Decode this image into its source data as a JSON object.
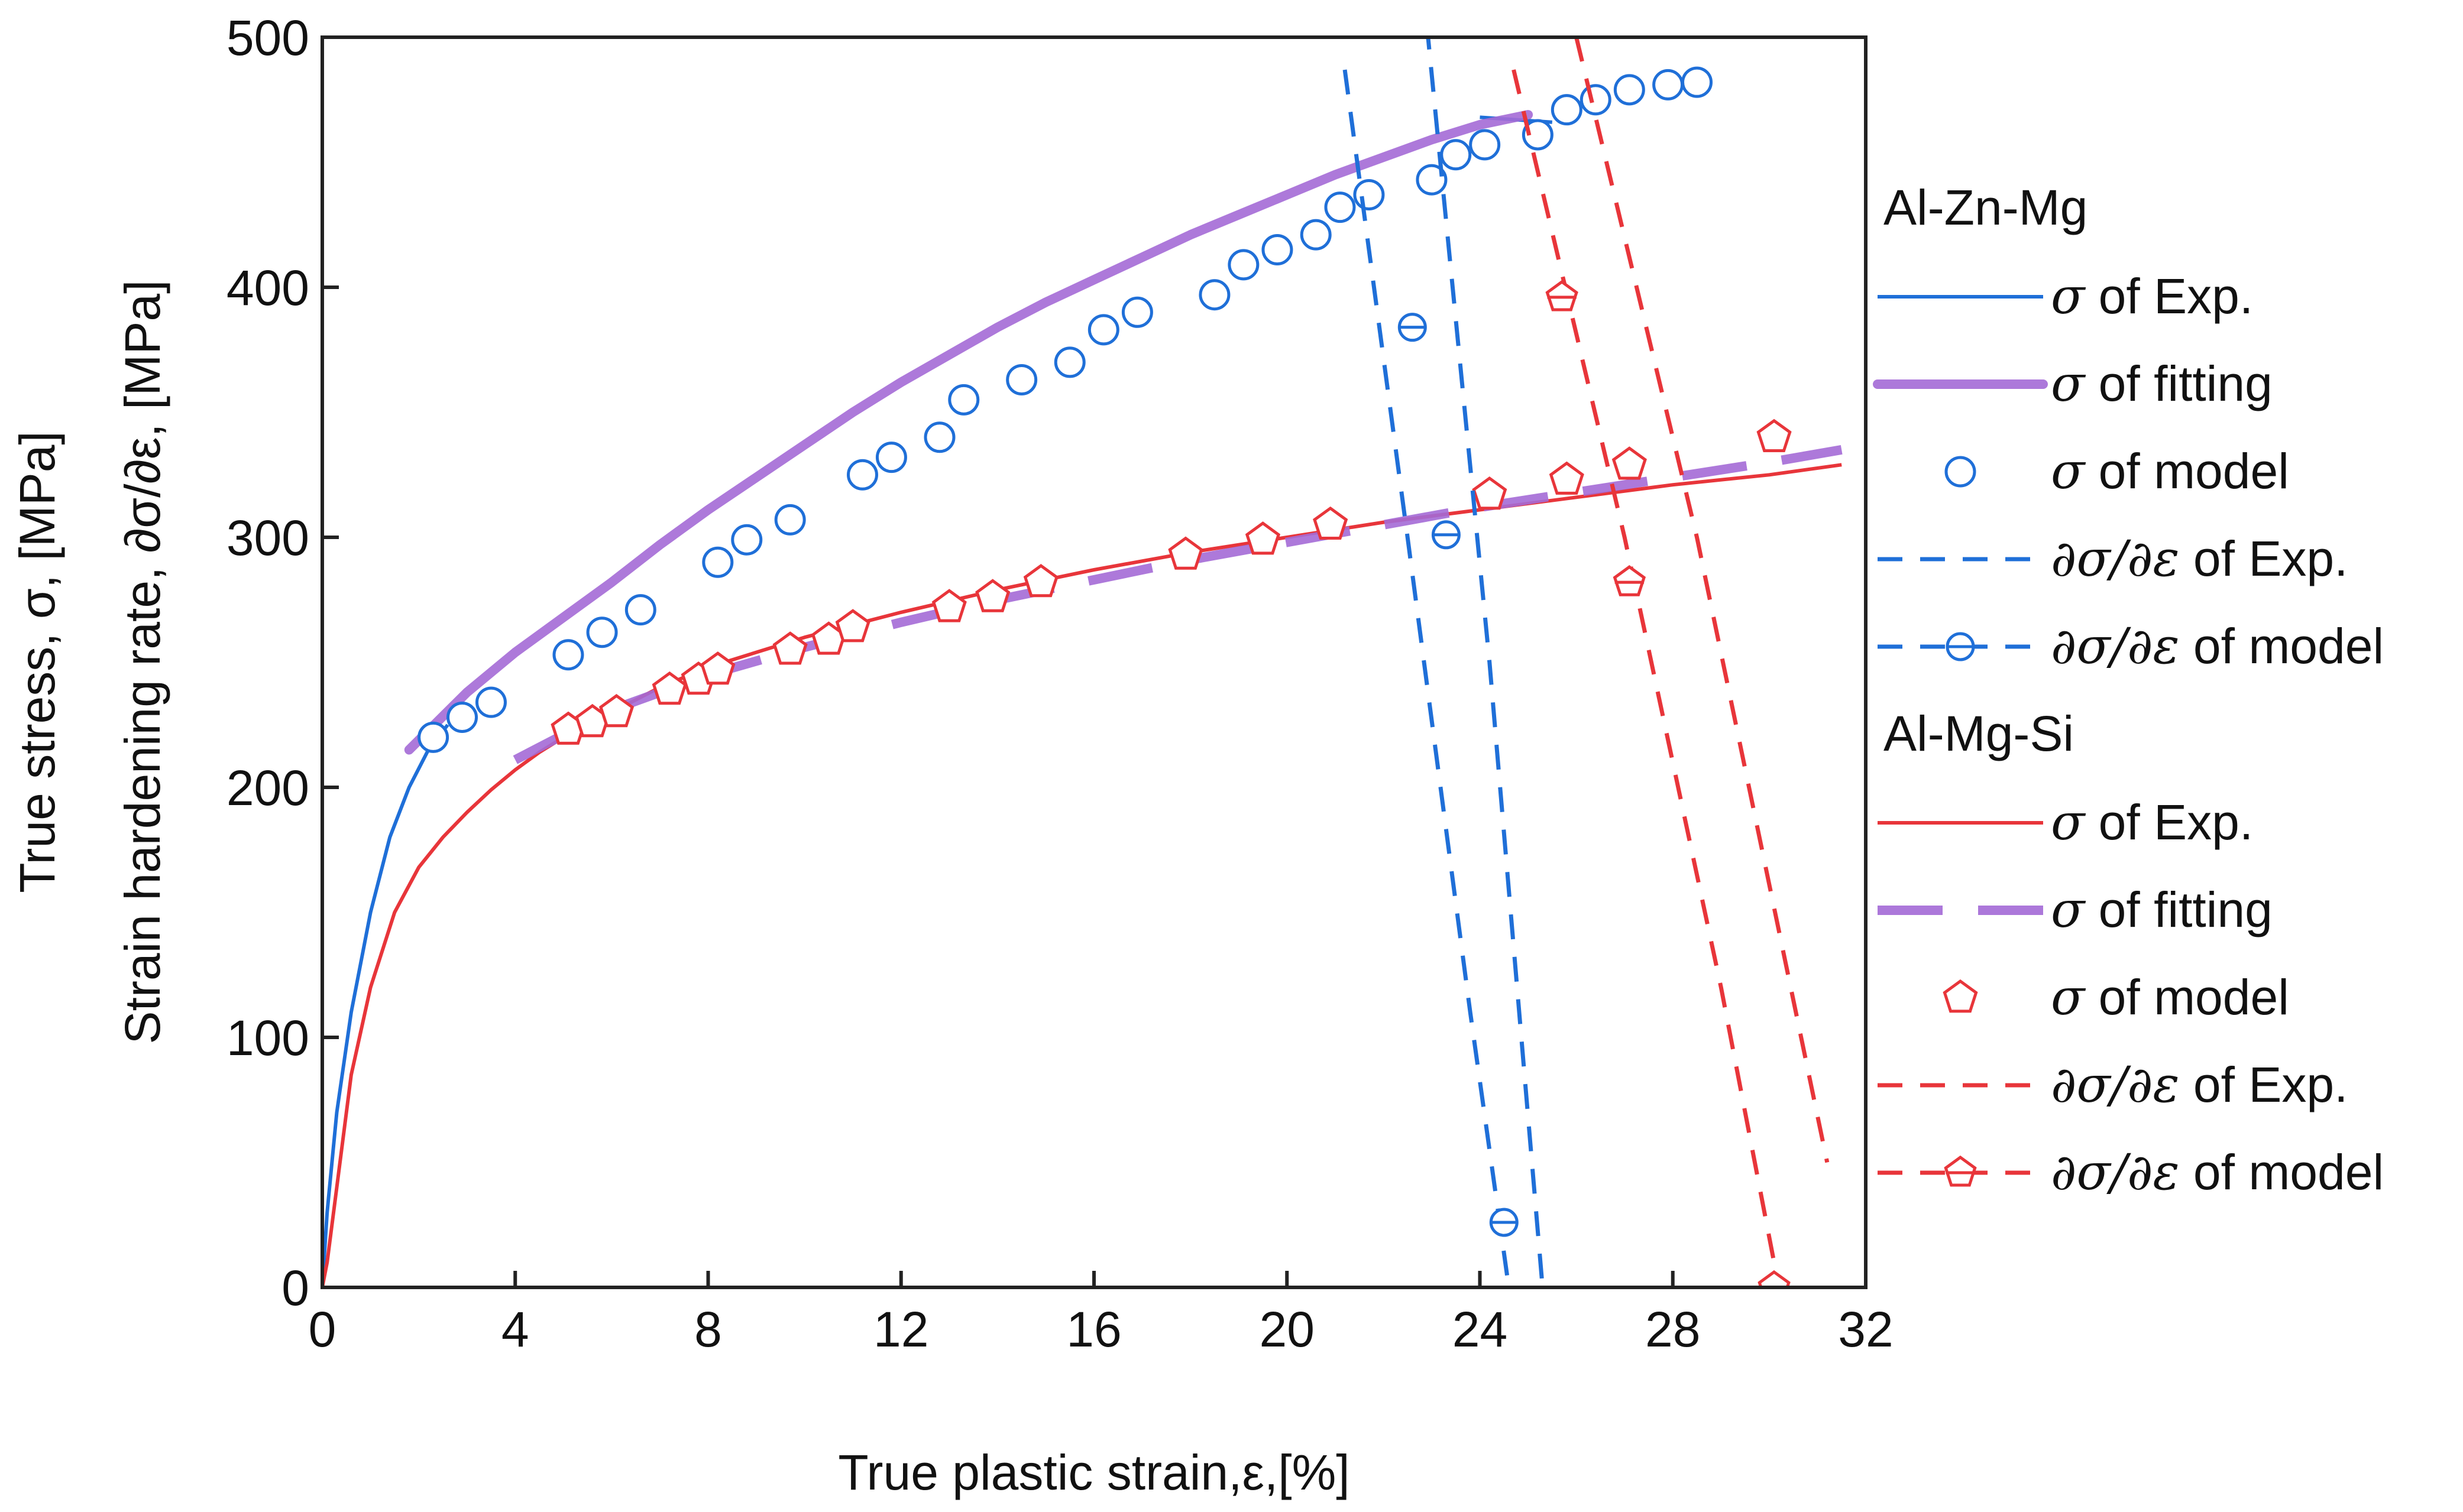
{
  "chart_data": {
    "type": "line",
    "title": "",
    "xlabel": "True plastic strain,ε,[%]",
    "ylabel_line1": "True stress, σ, [MPa]",
    "ylabel_line2": "Strain hardening rate, ∂σ/∂ε, [MPa]",
    "xlim": [
      0,
      32
    ],
    "ylim": [
      0,
      500
    ],
    "xticks": [
      0,
      4,
      8,
      12,
      16,
      20,
      24,
      28,
      32
    ],
    "yticks": [
      0,
      100,
      200,
      300,
      400,
      500
    ],
    "grid": false,
    "legend_position": "right",
    "colors": {
      "blue": "#1f6fd8",
      "red": "#e8353a",
      "purple": "#a46ad6"
    },
    "legend": [
      {
        "group": "Al-Zn-Mg"
      },
      {
        "sym": "σ",
        "text": " of Exp.",
        "color": "#1f6fd8",
        "style": "solid"
      },
      {
        "sym": "σ",
        "text": " of fitting",
        "color": "#a46ad6",
        "style": "thick"
      },
      {
        "sym": "σ",
        "text": " of model",
        "color": "#1f6fd8",
        "style": "circle"
      },
      {
        "sym": "∂σ/∂ε",
        "text": " of Exp.",
        "color": "#1f6fd8",
        "style": "dash"
      },
      {
        "sym": "∂σ/∂ε",
        "text": " of model",
        "color": "#1f6fd8",
        "style": "dash-circle"
      },
      {
        "group": "Al-Mg-Si"
      },
      {
        "sym": "σ",
        "text": " of Exp.",
        "color": "#e8353a",
        "style": "solid"
      },
      {
        "sym": "σ",
        "text": " of fitting",
        "color": "#a46ad6",
        "style": "thick-dash"
      },
      {
        "sym": "σ",
        "text": " of model",
        "color": "#e8353a",
        "style": "pentagon"
      },
      {
        "sym": "∂σ/∂ε",
        "text": " of Exp.",
        "color": "#e8353a",
        "style": "dash"
      },
      {
        "sym": "∂σ/∂ε",
        "text": " of model",
        "color": "#e8353a",
        "style": "dash-pentagon"
      }
    ],
    "series": [
      {
        "name": "Al-Zn-Mg σ of Exp.",
        "color": "#1f6fd8",
        "style": "solid",
        "x": [
          0,
          0.1,
          0.3,
          0.6,
          1.0,
          1.4,
          1.8,
          2.2,
          2.6
        ],
        "y": [
          0,
          30,
          70,
          110,
          150,
          180,
          200,
          215,
          225
        ]
      },
      {
        "name": "Al-Zn-Mg σ of Exp. upper",
        "color": "#1f6fd8",
        "style": "solid",
        "x": [
          24,
          25.5
        ],
        "y": [
          468,
          466
        ]
      },
      {
        "name": "Al-Zn-Mg σ of fitting",
        "color": "#a46ad6",
        "style": "thick",
        "x": [
          1.8,
          3,
          4,
          5,
          6,
          7,
          8,
          9,
          10,
          11,
          12,
          13,
          14,
          15,
          16,
          17,
          18,
          19,
          20,
          21,
          22,
          23,
          24,
          25
        ],
        "y": [
          215,
          238,
          254,
          268,
          282,
          297,
          311,
          324,
          337,
          350,
          362,
          373,
          384,
          394,
          403,
          412,
          421,
          429,
          437,
          445,
          452,
          459,
          465,
          469
        ]
      },
      {
        "name": "Al-Zn-Mg σ of model",
        "color": "#1f6fd8",
        "style": "circle",
        "x": [
          2.3,
          2.9,
          3.5,
          5.1,
          5.8,
          6.6,
          8.2,
          8.8,
          9.7,
          11.2,
          11.8,
          12.8,
          13.3,
          14.5,
          15.5,
          16.2,
          16.9,
          18.5,
          19.1,
          19.8,
          20.6,
          21.1,
          21.7,
          23.0,
          23.5,
          24.1,
          25.2,
          25.8,
          26.4,
          27.1,
          27.9,
          28.5
        ],
        "y": [
          220,
          228,
          234,
          253,
          262,
          271,
          290,
          299,
          307,
          325,
          332,
          340,
          355,
          363,
          370,
          383,
          390,
          397,
          409,
          415,
          421,
          432,
          437,
          443,
          453,
          457,
          461,
          471,
          475,
          479,
          481,
          482
        ]
      },
      {
        "name": "Al-Mg-Si σ of Exp.",
        "color": "#e8353a",
        "style": "solid",
        "x": [
          0,
          0.1,
          0.3,
          0.6,
          1.0,
          1.5,
          2.0,
          2.5,
          3.0,
          3.5,
          4.0,
          4.5,
          5.0,
          6,
          7,
          8,
          10,
          12,
          14,
          16,
          18,
          20,
          22,
          24,
          26,
          28,
          30,
          31.5
        ],
        "y": [
          0,
          10,
          40,
          85,
          120,
          150,
          168,
          180,
          190,
          199,
          207,
          214,
          220,
          230,
          240,
          248,
          260,
          270,
          279,
          287,
          294,
          300,
          306,
          311,
          316,
          321,
          325,
          329
        ]
      },
      {
        "name": "Al-Mg-Si σ of fitting",
        "color": "#a46ad6",
        "style": "thick-dash",
        "x": [
          4,
          6,
          8,
          10,
          12,
          14,
          16,
          18,
          20,
          22,
          24,
          26,
          28,
          30,
          31.5
        ],
        "y": [
          211,
          231,
          245,
          256,
          266,
          275,
          283,
          291,
          298,
          305,
          312,
          318,
          324,
          330,
          335
        ]
      },
      {
        "name": "Al-Mg-Si σ of model",
        "color": "#e8353a",
        "style": "pentagon",
        "x": [
          5.1,
          5.6,
          6.1,
          7.2,
          7.8,
          8.2,
          9.7,
          10.5,
          11.0,
          13.0,
          13.9,
          14.9,
          17.9,
          19.5,
          20.9,
          24.2,
          25.8,
          27.1,
          30.1
        ],
        "y": [
          223,
          226,
          230,
          239,
          243,
          247,
          255,
          259,
          264,
          272,
          276,
          282,
          293,
          299,
          305,
          317,
          323,
          329,
          340
        ]
      },
      {
        "name": "Al-Zn-Mg ∂σ/∂ε of Exp. 1",
        "color": "#1f6fd8",
        "style": "dash",
        "x": [
          21.2,
          22.5,
          23.8,
          24.6
        ],
        "y": [
          487,
          300,
          110,
          0
        ]
      },
      {
        "name": "Al-Zn-Mg ∂σ/∂ε of Exp. 2",
        "color": "#1f6fd8",
        "style": "dash",
        "x": [
          22.9,
          24.2,
          25.3
        ],
        "y": [
          505,
          250,
          0
        ]
      },
      {
        "name": "Al-Zn-Mg ∂σ/∂ε of model",
        "color": "#1f6fd8",
        "style": "dash-circle",
        "x": [
          22.6,
          23.3,
          24.5
        ],
        "y": [
          384,
          301,
          26
        ]
      },
      {
        "name": "Al-Mg-Si ∂σ/∂ε of Exp. 1",
        "color": "#e8353a",
        "style": "dash",
        "x": [
          24.7,
          27.0,
          29.0,
          30.2
        ],
        "y": [
          487,
          300,
          120,
          0
        ]
      },
      {
        "name": "Al-Mg-Si ∂σ/∂ε of Exp. 2",
        "color": "#e8353a",
        "style": "dash",
        "x": [
          26.0,
          28.5,
          31.2
        ],
        "y": [
          500,
          300,
          50
        ]
      },
      {
        "name": "Al-Mg-Si ∂σ/∂ε of model",
        "color": "#e8353a",
        "style": "dash-pentagon",
        "x": [
          25.7,
          27.1,
          30.1
        ],
        "y": [
          396,
          282,
          0
        ]
      }
    ]
  }
}
